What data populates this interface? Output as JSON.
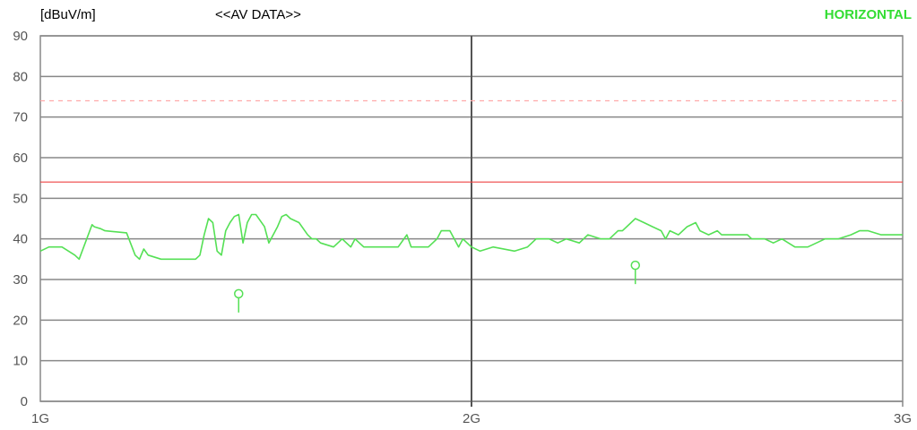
{
  "header": {
    "unit": "[dBuV/m]",
    "title": "<<AV DATA>>",
    "polarization": "HORIZONTAL"
  },
  "colors": {
    "trace": "#55e055",
    "marker": "#55e055",
    "limit": "#ee4444",
    "limit_dashed": "#ffaaaa",
    "grid": "#888888",
    "major_grid": "#555555"
  },
  "chart_data": {
    "type": "line",
    "xlim": [
      1,
      3
    ],
    "ylim": [
      0,
      90
    ],
    "y_ticks": [
      "0",
      "10",
      "20",
      "30",
      "40",
      "50",
      "60",
      "70",
      "80",
      "90"
    ],
    "x_ticks": [
      {
        "value": 1,
        "label": "1G"
      },
      {
        "value": 2,
        "label": "2G"
      },
      {
        "value": 3,
        "label": "3G"
      }
    ],
    "limits": [
      {
        "value": 54,
        "style": "solid"
      },
      {
        "value": 74,
        "style": "dashed"
      }
    ],
    "series": [
      {
        "x": [
          1.0,
          1.02,
          1.05,
          1.08,
          1.09,
          1.12,
          1.125,
          1.14,
          1.15,
          1.2,
          1.22,
          1.23,
          1.24,
          1.25,
          1.28,
          1.3,
          1.33,
          1.36,
          1.37,
          1.38,
          1.39,
          1.4,
          1.41,
          1.42,
          1.43,
          1.44,
          1.45,
          1.46,
          1.47,
          1.48,
          1.49,
          1.5,
          1.52,
          1.53,
          1.55,
          1.56,
          1.57,
          1.58,
          1.6,
          1.62,
          1.63,
          1.64,
          1.65,
          1.68,
          1.7,
          1.72,
          1.73,
          1.75,
          1.77,
          1.8,
          1.83,
          1.85,
          1.86,
          1.9,
          1.92,
          1.93,
          1.95,
          1.97,
          1.98,
          2.0,
          2.02,
          2.05,
          2.1,
          2.13,
          2.15,
          2.18,
          2.2,
          2.22,
          2.25,
          2.27,
          2.3,
          2.32,
          2.34,
          2.35,
          2.38,
          2.4,
          2.42,
          2.44,
          2.45,
          2.46,
          2.48,
          2.5,
          2.52,
          2.53,
          2.55,
          2.57,
          2.58,
          2.6,
          2.62,
          2.64,
          2.65,
          2.68,
          2.7,
          2.72,
          2.75,
          2.78,
          2.8,
          2.82,
          2.85,
          2.88,
          2.9,
          2.92,
          2.95,
          2.98,
          3.0
        ],
        "y": [
          37,
          38,
          38,
          36,
          35,
          43.5,
          43,
          42.5,
          42,
          41.5,
          36,
          35,
          37.5,
          36,
          35,
          35,
          35,
          35,
          36,
          41,
          45,
          44,
          37,
          36,
          42,
          44,
          45.5,
          46,
          39,
          44,
          46,
          46,
          43,
          39,
          43,
          45.5,
          46,
          45,
          44,
          41,
          40,
          40,
          39,
          38,
          40,
          38,
          40,
          38,
          38,
          38,
          38,
          41,
          38,
          38,
          40,
          42,
          42,
          38,
          40,
          38,
          37,
          38,
          37,
          38,
          40,
          40,
          39,
          40,
          39,
          41,
          40,
          40,
          42,
          42,
          45,
          44,
          43,
          42,
          40,
          42,
          41,
          43,
          44,
          42,
          41,
          42,
          41,
          41,
          41,
          41,
          40,
          40,
          39,
          40,
          38,
          38,
          39,
          40,
          40,
          41,
          42,
          42,
          41,
          41,
          41
        ]
      }
    ],
    "markers": [
      {
        "x": 1.46,
        "y": 26.5
      },
      {
        "x": 2.38,
        "y": 33.5
      }
    ]
  }
}
